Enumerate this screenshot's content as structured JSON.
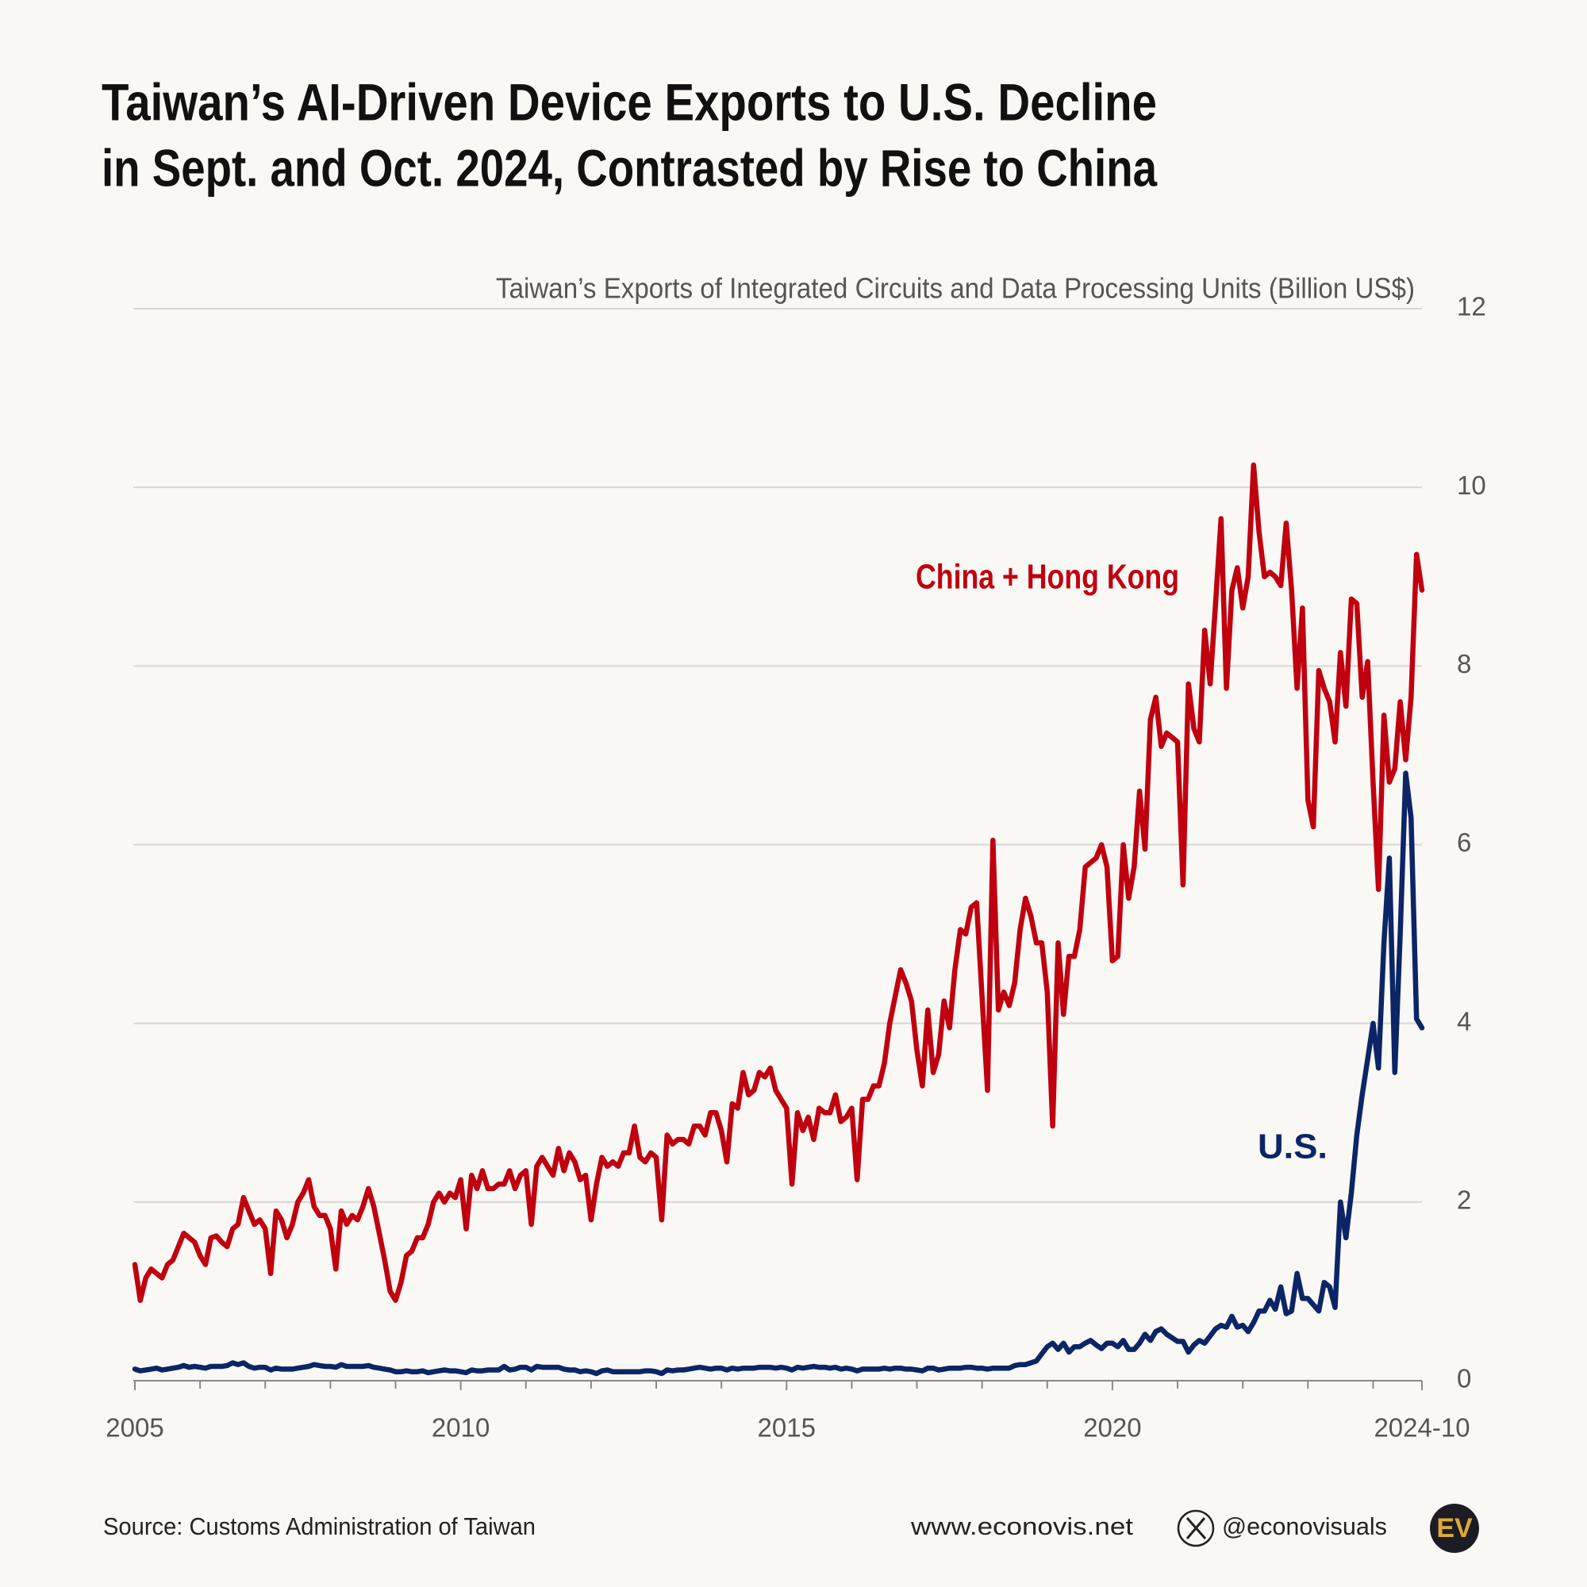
{
  "chart_data": {
    "type": "line",
    "title": [
      "Taiwan’s AI-Driven Device Exports to U.S. Decline",
      "in Sept. and Oct. 2024, Contrasted by Rise to China"
    ],
    "ylabel": "Taiwan’s Exports of Integrated Circuits and Data Processing Units (Billion US$)",
    "x": [
      "2005-01",
      "2005-02",
      "2005-03",
      "2005-04",
      "2005-05",
      "2005-06",
      "2005-07",
      "2005-08",
      "2005-09",
      "2005-10",
      "2005-11",
      "2005-12",
      "2006-01",
      "2006-02",
      "2006-03",
      "2006-04",
      "2006-05",
      "2006-06",
      "2006-07",
      "2006-08",
      "2006-09",
      "2006-10",
      "2006-11",
      "2006-12",
      "2007-01",
      "2007-02",
      "2007-03",
      "2007-04",
      "2007-05",
      "2007-06",
      "2007-07",
      "2007-08",
      "2007-09",
      "2007-10",
      "2007-11",
      "2007-12",
      "2008-01",
      "2008-02",
      "2008-03",
      "2008-04",
      "2008-05",
      "2008-06",
      "2008-07",
      "2008-08",
      "2008-09",
      "2008-10",
      "2008-11",
      "2008-12",
      "2009-01",
      "2009-02",
      "2009-03",
      "2009-04",
      "2009-05",
      "2009-06",
      "2009-07",
      "2009-08",
      "2009-09",
      "2009-10",
      "2009-11",
      "2009-12",
      "2010-01",
      "2010-02",
      "2010-03",
      "2010-04",
      "2010-05",
      "2010-06",
      "2010-07",
      "2010-08",
      "2010-09",
      "2010-10",
      "2010-11",
      "2010-12",
      "2011-01",
      "2011-02",
      "2011-03",
      "2011-04",
      "2011-05",
      "2011-06",
      "2011-07",
      "2011-08",
      "2011-09",
      "2011-10",
      "2011-11",
      "2011-12",
      "2012-01",
      "2012-02",
      "2012-03",
      "2012-04",
      "2012-05",
      "2012-06",
      "2012-07",
      "2012-08",
      "2012-09",
      "2012-10",
      "2012-11",
      "2012-12",
      "2013-01",
      "2013-02",
      "2013-03",
      "2013-04",
      "2013-05",
      "2013-06",
      "2013-07",
      "2013-08",
      "2013-09",
      "2013-10",
      "2013-11",
      "2013-12",
      "2014-01",
      "2014-02",
      "2014-03",
      "2014-04",
      "2014-05",
      "2014-06",
      "2014-07",
      "2014-08",
      "2014-09",
      "2014-10",
      "2014-11",
      "2014-12",
      "2015-01",
      "2015-02",
      "2015-03",
      "2015-04",
      "2015-05",
      "2015-06",
      "2015-07",
      "2015-08",
      "2015-09",
      "2015-10",
      "2015-11",
      "2015-12",
      "2016-01",
      "2016-02",
      "2016-03",
      "2016-04",
      "2016-05",
      "2016-06",
      "2016-07",
      "2016-08",
      "2016-09",
      "2016-10",
      "2016-11",
      "2016-12",
      "2017-01",
      "2017-02",
      "2017-03",
      "2017-04",
      "2017-05",
      "2017-06",
      "2017-07",
      "2017-08",
      "2017-09",
      "2017-10",
      "2017-11",
      "2017-12",
      "2018-01",
      "2018-02",
      "2018-03",
      "2018-04",
      "2018-05",
      "2018-06",
      "2018-07",
      "2018-08",
      "2018-09",
      "2018-10",
      "2018-11",
      "2018-12",
      "2019-01",
      "2019-02",
      "2019-03",
      "2019-04",
      "2019-05",
      "2019-06",
      "2019-07",
      "2019-08",
      "2019-09",
      "2019-10",
      "2019-11",
      "2019-12",
      "2020-01",
      "2020-02",
      "2020-03",
      "2020-04",
      "2020-05",
      "2020-06",
      "2020-07",
      "2020-08",
      "2020-09",
      "2020-10",
      "2020-11",
      "2020-12",
      "2021-01",
      "2021-02",
      "2021-03",
      "2021-04",
      "2021-05",
      "2021-06",
      "2021-07",
      "2021-08",
      "2021-09",
      "2021-10",
      "2021-11",
      "2021-12",
      "2022-01",
      "2022-02",
      "2022-03",
      "2022-04",
      "2022-05",
      "2022-06",
      "2022-07",
      "2022-08",
      "2022-09",
      "2022-10",
      "2022-11",
      "2022-12",
      "2023-01",
      "2023-02",
      "2023-03",
      "2023-04",
      "2023-05",
      "2023-06",
      "2023-07",
      "2023-08",
      "2023-09",
      "2023-10",
      "2023-11",
      "2023-12",
      "2024-01",
      "2024-02",
      "2024-03",
      "2024-04",
      "2024-05",
      "2024-06",
      "2024-07",
      "2024-08",
      "2024-09",
      "2024-10"
    ],
    "series": [
      {
        "name": "China + Hong Kong",
        "color": "#c0000f",
        "values": [
          1.3,
          0.9,
          1.15,
          1.25,
          1.2,
          1.15,
          1.3,
          1.35,
          1.5,
          1.65,
          1.6,
          1.55,
          1.4,
          1.3,
          1.6,
          1.62,
          1.55,
          1.5,
          1.7,
          1.75,
          2.05,
          1.9,
          1.75,
          1.8,
          1.7,
          1.2,
          1.9,
          1.8,
          1.6,
          1.75,
          2.0,
          2.1,
          2.25,
          1.95,
          1.85,
          1.85,
          1.7,
          1.25,
          1.9,
          1.75,
          1.85,
          1.8,
          1.95,
          2.15,
          1.95,
          1.65,
          1.35,
          1.0,
          0.9,
          1.1,
          1.4,
          1.45,
          1.6,
          1.6,
          1.75,
          2.0,
          2.1,
          2.0,
          2.1,
          2.05,
          2.25,
          1.7,
          2.3,
          2.15,
          2.35,
          2.15,
          2.15,
          2.2,
          2.2,
          2.35,
          2.15,
          2.3,
          2.35,
          1.75,
          2.4,
          2.5,
          2.4,
          2.3,
          2.6,
          2.35,
          2.55,
          2.45,
          2.25,
          2.3,
          1.8,
          2.2,
          2.5,
          2.4,
          2.45,
          2.4,
          2.55,
          2.55,
          2.85,
          2.5,
          2.45,
          2.55,
          2.5,
          1.8,
          2.75,
          2.65,
          2.7,
          2.7,
          2.65,
          2.85,
          2.85,
          2.75,
          3.0,
          3.0,
          2.8,
          2.45,
          3.1,
          3.05,
          3.45,
          3.2,
          3.25,
          3.45,
          3.4,
          3.5,
          3.25,
          3.15,
          3.05,
          2.2,
          3.0,
          2.8,
          2.95,
          2.7,
          3.05,
          3.0,
          3.0,
          3.2,
          2.9,
          2.95,
          3.05,
          2.25,
          3.15,
          3.15,
          3.3,
          3.3,
          3.55,
          4.0,
          4.3,
          4.6,
          4.45,
          4.25,
          3.7,
          3.3,
          4.15,
          3.45,
          3.65,
          4.25,
          3.95,
          4.6,
          5.05,
          5.0,
          5.3,
          5.35,
          4.3,
          3.25,
          6.05,
          4.15,
          4.35,
          4.2,
          4.45,
          5.05,
          5.4,
          5.2,
          4.9,
          4.9,
          4.35,
          2.85,
          4.9,
          4.1,
          4.75,
          4.75,
          5.05,
          5.75,
          5.8,
          5.85,
          6.0,
          5.75,
          4.7,
          4.75,
          6.0,
          5.4,
          5.75,
          6.6,
          5.95,
          7.4,
          7.65,
          7.1,
          7.25,
          7.2,
          7.15,
          5.55,
          7.8,
          7.3,
          7.15,
          8.4,
          7.8,
          8.7,
          9.65,
          7.75,
          8.85,
          9.1,
          8.65,
          9.0,
          10.25,
          9.5,
          9.0,
          9.05,
          9.0,
          8.9,
          9.6,
          8.85,
          7.75,
          8.65,
          6.5,
          6.2,
          7.95,
          7.75,
          7.6,
          7.15,
          8.15,
          7.55,
          8.75,
          8.7,
          7.65,
          8.05,
          6.7,
          5.5,
          7.45,
          6.7,
          6.85,
          7.6,
          6.95,
          7.65,
          9.25,
          8.85
        ]
      },
      {
        "name": "U.S.",
        "color": "#0b2566",
        "values": [
          0.13,
          0.11,
          0.12,
          0.13,
          0.14,
          0.12,
          0.13,
          0.14,
          0.15,
          0.17,
          0.15,
          0.16,
          0.15,
          0.14,
          0.16,
          0.16,
          0.16,
          0.17,
          0.2,
          0.18,
          0.2,
          0.16,
          0.14,
          0.15,
          0.15,
          0.12,
          0.14,
          0.13,
          0.13,
          0.13,
          0.14,
          0.15,
          0.16,
          0.18,
          0.17,
          0.16,
          0.16,
          0.15,
          0.18,
          0.16,
          0.16,
          0.16,
          0.16,
          0.17,
          0.15,
          0.14,
          0.13,
          0.12,
          0.1,
          0.1,
          0.11,
          0.1,
          0.1,
          0.11,
          0.09,
          0.1,
          0.11,
          0.12,
          0.11,
          0.11,
          0.1,
          0.09,
          0.12,
          0.11,
          0.11,
          0.12,
          0.12,
          0.12,
          0.16,
          0.12,
          0.13,
          0.15,
          0.15,
          0.12,
          0.16,
          0.15,
          0.15,
          0.15,
          0.15,
          0.13,
          0.12,
          0.12,
          0.1,
          0.11,
          0.1,
          0.08,
          0.11,
          0.12,
          0.1,
          0.1,
          0.1,
          0.1,
          0.1,
          0.1,
          0.11,
          0.11,
          0.1,
          0.08,
          0.12,
          0.11,
          0.12,
          0.12,
          0.13,
          0.14,
          0.15,
          0.14,
          0.13,
          0.14,
          0.14,
          0.12,
          0.14,
          0.13,
          0.14,
          0.14,
          0.14,
          0.15,
          0.15,
          0.15,
          0.14,
          0.15,
          0.14,
          0.12,
          0.15,
          0.14,
          0.15,
          0.16,
          0.15,
          0.15,
          0.14,
          0.15,
          0.13,
          0.14,
          0.13,
          0.11,
          0.13,
          0.13,
          0.13,
          0.13,
          0.14,
          0.13,
          0.14,
          0.14,
          0.13,
          0.13,
          0.12,
          0.11,
          0.14,
          0.14,
          0.12,
          0.13,
          0.14,
          0.14,
          0.14,
          0.15,
          0.15,
          0.14,
          0.14,
          0.13,
          0.14,
          0.14,
          0.14,
          0.14,
          0.17,
          0.18,
          0.18,
          0.2,
          0.22,
          0.3,
          0.38,
          0.42,
          0.35,
          0.42,
          0.32,
          0.38,
          0.38,
          0.42,
          0.45,
          0.4,
          0.36,
          0.42,
          0.42,
          0.38,
          0.45,
          0.35,
          0.35,
          0.42,
          0.52,
          0.45,
          0.55,
          0.58,
          0.52,
          0.48,
          0.44,
          0.44,
          0.32,
          0.4,
          0.45,
          0.42,
          0.5,
          0.58,
          0.62,
          0.6,
          0.72,
          0.6,
          0.62,
          0.55,
          0.65,
          0.78,
          0.78,
          0.9,
          0.8,
          1.05,
          0.75,
          0.78,
          1.2,
          0.92,
          0.92,
          0.85,
          0.78,
          1.1,
          1.05,
          0.82,
          2.0,
          1.6,
          2.1,
          2.75,
          3.2,
          3.6,
          4.0,
          3.5,
          4.9,
          5.85,
          3.45,
          5.0,
          6.8,
          6.3,
          4.05,
          3.95
        ]
      }
    ],
    "xlim": [
      "2005-01",
      "2024-10"
    ],
    "xticks": [
      {
        "value": "2005-01",
        "label": "2005"
      },
      {
        "value": "2010-01",
        "label": "2010"
      },
      {
        "value": "2015-01",
        "label": "2015"
      },
      {
        "value": "2020-01",
        "label": "2020"
      },
      {
        "value": "2024-10",
        "label": "2024-10"
      }
    ],
    "xminorticks": [
      "2006-01",
      "2007-01",
      "2008-01",
      "2009-01",
      "2011-01",
      "2012-01",
      "2013-01",
      "2014-01",
      "2016-01",
      "2017-01",
      "2018-01",
      "2019-01",
      "2021-01",
      "2022-01",
      "2023-01",
      "2024-01"
    ],
    "ylim": [
      0,
      12
    ],
    "yticks": [
      0,
      2,
      4,
      6,
      8,
      10,
      12
    ],
    "grid": true,
    "y_axis_side": "right"
  },
  "footer": {
    "source": "Source: Customs Administration of Taiwan",
    "website": "www.econovis.net",
    "social": "@econovisuals",
    "logo": "EV"
  }
}
